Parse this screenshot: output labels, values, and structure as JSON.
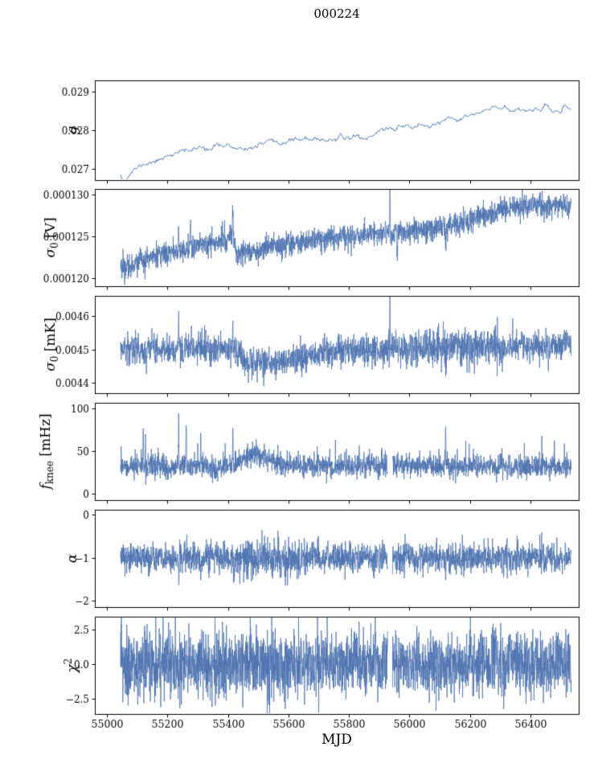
{
  "chart_data": {
    "type": "line",
    "title": "000224",
    "xlabel": "MJD",
    "line_color": "#4c72b0",
    "axis_color": "#000000",
    "xlim": [
      54960,
      56560
    ],
    "xticks": [
      55000,
      55200,
      55400,
      55600,
      55800,
      56000,
      56200,
      56400
    ],
    "xtick_labels": [
      "55000",
      "55200",
      "55400",
      "55600",
      "55800",
      "56000",
      "56200",
      "56400"
    ],
    "x_data_range": [
      55045,
      56535
    ],
    "panels": [
      {
        "id": "g",
        "ylabel": "g",
        "ylabel_runs": [
          {
            "t": "g",
            "i": 1
          }
        ],
        "ylabel_x": 95,
        "ylim": [
          0.02672,
          0.02928
        ],
        "yticks": [
          0.027,
          0.028,
          0.029
        ],
        "ytick_labels": [
          "0.027",
          "0.028",
          "0.029"
        ],
        "noise": 2.5e-05,
        "ar": 0.7,
        "lw": 1.0,
        "n_points": 550,
        "seed": 11,
        "trend": [
          [
            55045,
            0.02688
          ],
          [
            55052,
            0.02676
          ],
          [
            55060,
            0.0267
          ],
          [
            55070,
            0.02682
          ],
          [
            55085,
            0.02695
          ],
          [
            55100,
            0.02703
          ],
          [
            55120,
            0.02712
          ],
          [
            55140,
            0.02716
          ],
          [
            55170,
            0.02722
          ],
          [
            55200,
            0.02738
          ],
          [
            55230,
            0.0274
          ],
          [
            55260,
            0.02748
          ],
          [
            55290,
            0.0275
          ],
          [
            55320,
            0.02757
          ],
          [
            55345,
            0.02753
          ],
          [
            55370,
            0.0276
          ],
          [
            55400,
            0.02765
          ],
          [
            55425,
            0.02748
          ],
          [
            55440,
            0.02755
          ],
          [
            55455,
            0.02742
          ],
          [
            55470,
            0.02752
          ],
          [
            55490,
            0.02758
          ],
          [
            55515,
            0.02764
          ],
          [
            55540,
            0.02768
          ],
          [
            55565,
            0.02762
          ],
          [
            55590,
            0.02772
          ],
          [
            55620,
            0.02776
          ],
          [
            55650,
            0.02778
          ],
          [
            55680,
            0.02772
          ],
          [
            55710,
            0.02777
          ],
          [
            55740,
            0.02776
          ],
          [
            55770,
            0.02779
          ],
          [
            55800,
            0.0278
          ],
          [
            55830,
            0.02787
          ],
          [
            55855,
            0.02776
          ],
          [
            55880,
            0.0279
          ],
          [
            55905,
            0.028
          ],
          [
            55930,
            0.02806
          ],
          [
            55955,
            0.02803
          ],
          [
            55975,
            0.02812
          ],
          [
            56000,
            0.02813
          ],
          [
            56020,
            0.02807
          ],
          [
            56045,
            0.02816
          ],
          [
            56065,
            0.02805
          ],
          [
            56085,
            0.02818
          ],
          [
            56110,
            0.0282
          ],
          [
            56140,
            0.02827
          ],
          [
            56170,
            0.02829
          ],
          [
            56200,
            0.02838
          ],
          [
            56230,
            0.02843
          ],
          [
            56260,
            0.02852
          ],
          [
            56290,
            0.02857
          ],
          [
            56315,
            0.02861
          ],
          [
            56335,
            0.02849
          ],
          [
            56355,
            0.02857
          ],
          [
            56380,
            0.02853
          ],
          [
            56405,
            0.02855
          ],
          [
            56425,
            0.02851
          ],
          [
            56450,
            0.02857
          ],
          [
            56475,
            0.02847
          ],
          [
            56500,
            0.02853
          ],
          [
            56535,
            0.02852
          ]
        ],
        "spikes": [],
        "gaps": []
      },
      {
        "id": "sigma0-v",
        "ylabel": "σ0 [V]",
        "ylabel_runs": [
          {
            "t": "σ",
            "i": 1
          },
          {
            "t": "0",
            "sub": 1
          },
          {
            "t": " [V]"
          }
        ],
        "ylabel_x": 68,
        "ylim": [
          0.000119,
          0.0001307
        ],
        "yticks": [
          0.00012,
          0.000125,
          0.00013
        ],
        "ytick_labels": [
          "0.000120",
          "0.000125",
          "0.000130"
        ],
        "noise": 7e-07,
        "lw": 0.8,
        "n_points": 2200,
        "seed": 22,
        "trend": [
          [
            55045,
            0.0001212
          ],
          [
            55080,
            0.0001216
          ],
          [
            55120,
            0.0001221
          ],
          [
            55160,
            0.0001225
          ],
          [
            55200,
            0.000123
          ],
          [
            55250,
            0.0001234
          ],
          [
            55300,
            0.0001238
          ],
          [
            55350,
            0.0001242
          ],
          [
            55390,
            0.0001246
          ],
          [
            55412,
            0.000125
          ],
          [
            55420,
            0.0001252
          ],
          [
            55428,
            0.0001228
          ],
          [
            55460,
            0.0001231
          ],
          [
            55500,
            0.0001234
          ],
          [
            55550,
            0.0001238
          ],
          [
            55600,
            0.000124
          ],
          [
            55650,
            0.0001243
          ],
          [
            55700,
            0.0001246
          ],
          [
            55750,
            0.0001248
          ],
          [
            55800,
            0.000125
          ],
          [
            55850,
            0.0001252
          ],
          [
            55900,
            0.0001254
          ],
          [
            55950,
            0.0001255
          ],
          [
            56000,
            0.0001257
          ],
          [
            56050,
            0.0001258
          ],
          [
            56100,
            0.0001261
          ],
          [
            56150,
            0.0001264
          ],
          [
            56200,
            0.0001269
          ],
          [
            56240,
            0.0001274
          ],
          [
            56280,
            0.000128
          ],
          [
            56320,
            0.0001284
          ],
          [
            56360,
            0.0001287
          ],
          [
            56400,
            0.0001286
          ],
          [
            56440,
            0.0001288
          ],
          [
            56480,
            0.0001287
          ],
          [
            56535,
            0.0001288
          ]
        ],
        "spikes": [
          [
            55237,
            4e-06
          ],
          [
            55276,
            4.2e-06
          ],
          [
            55416,
            4.6e-06
          ],
          [
            55936,
            6e-06
          ],
          [
            55960,
            -3.6e-06
          ],
          [
            56120,
            -3e-06
          ]
        ],
        "gaps": []
      },
      {
        "id": "sigma0-mk",
        "ylabel": "σ0 [mK]",
        "ylabel_runs": [
          {
            "t": "σ",
            "i": 1
          },
          {
            "t": "0",
            "sub": 1
          },
          {
            "t": " [mK]"
          }
        ],
        "ylabel_x": 68,
        "ylim": [
          0.00437,
          0.00466
        ],
        "yticks": [
          0.0044,
          0.0045,
          0.0046
        ],
        "ytick_labels": [
          "0.0044",
          "0.0045",
          "0.0046"
        ],
        "noise": 2.2e-05,
        "noise_regions": [
          [
            55940,
            56300,
            1.25
          ]
        ],
        "lw": 0.8,
        "n_points": 2200,
        "seed": 33,
        "trend": [
          [
            55045,
            0.0045
          ],
          [
            55150,
            0.004502
          ],
          [
            55250,
            0.0045
          ],
          [
            55350,
            0.004503
          ],
          [
            55420,
            0.004496
          ],
          [
            55450,
            0.004472
          ],
          [
            55500,
            0.004462
          ],
          [
            55560,
            0.004458
          ],
          [
            55620,
            0.004466
          ],
          [
            55680,
            0.004484
          ],
          [
            55730,
            0.004494
          ],
          [
            55780,
            0.0045
          ],
          [
            55900,
            0.0045
          ],
          [
            56000,
            0.004504
          ],
          [
            56100,
            0.004503
          ],
          [
            56200,
            0.004508
          ],
          [
            56300,
            0.004508
          ],
          [
            56400,
            0.00451
          ],
          [
            56535,
            0.004512
          ]
        ],
        "spikes": [
          [
            55237,
            0.0001
          ],
          [
            55280,
            6e-05
          ],
          [
            55416,
            9e-05
          ],
          [
            55936,
            0.00018
          ],
          [
            55130,
            -5e-05
          ],
          [
            56120,
            -8e-05
          ],
          [
            56460,
            -7e-05
          ],
          [
            55955,
            6e-05
          ],
          [
            56260,
            7e-05
          ]
        ],
        "gaps": []
      },
      {
        "id": "fknee",
        "ylabel": "fknee [mHz]",
        "ylabel_runs": [
          {
            "t": "f",
            "i": 1
          },
          {
            "t": "knee",
            "sub": 1
          },
          {
            "t": " [mHz]"
          }
        ],
        "ylabel_x": 62,
        "ylim": [
          -8,
          107
        ],
        "yticks": [
          0,
          50,
          100
        ],
        "ytick_labels": [
          "0",
          "50",
          "100"
        ],
        "noise": 6.5,
        "tail": {
          "p": 0.03,
          "max": 26
        },
        "lw": 0.8,
        "n_points": 2400,
        "seed": 44,
        "trend": [
          [
            55045,
            31
          ],
          [
            55420,
            31
          ],
          [
            55450,
            42
          ],
          [
            55490,
            46
          ],
          [
            55530,
            41
          ],
          [
            55570,
            35
          ],
          [
            55610,
            32
          ],
          [
            56535,
            31
          ]
        ],
        "spikes": [
          [
            55120,
            52
          ],
          [
            55237,
            66
          ],
          [
            55262,
            66
          ],
          [
            55310,
            50
          ],
          [
            55416,
            56
          ],
          [
            55520,
            28
          ],
          [
            55700,
            22
          ],
          [
            55850,
            20
          ],
          [
            56000,
            18
          ],
          [
            56120,
            56
          ],
          [
            56300,
            20
          ],
          [
            56430,
            18
          ],
          [
            56480,
            16
          ]
        ],
        "gaps": [
          [
            55928,
            55944
          ]
        ]
      },
      {
        "id": "alpha",
        "ylabel": "α",
        "ylabel_runs": [
          {
            "t": "α",
            "i": 1
          }
        ],
        "ylabel_x": 95,
        "ylim": [
          -2.15,
          0.12
        ],
        "yticks": [
          -2,
          -1,
          0
        ],
        "ytick_labels": [
          "−2",
          "−1",
          "0"
        ],
        "noise": 0.17,
        "noise_regions": [
          [
            55430,
            55640,
            1.45
          ]
        ],
        "lw": 0.8,
        "n_points": 2400,
        "seed": 55,
        "trend": [
          [
            55045,
            -1
          ],
          [
            56535,
            -1
          ]
        ],
        "spikes": [
          [
            55060,
            -0.4
          ],
          [
            55140,
            -0.5
          ],
          [
            55237,
            -0.62
          ],
          [
            55310,
            -0.5
          ],
          [
            55420,
            -0.5
          ],
          [
            55640,
            -0.48
          ],
          [
            55900,
            -0.5
          ],
          [
            56120,
            -0.6
          ],
          [
            56350,
            -0.5
          ],
          [
            56480,
            -0.45
          ]
        ],
        "gaps": [
          [
            55928,
            55944
          ]
        ]
      },
      {
        "id": "chi2",
        "ylabel": "χ2",
        "ylabel_runs": [
          {
            "t": "χ",
            "i": 1
          },
          {
            "t": "2",
            "sup": 1
          }
        ],
        "ylabel_x": 95,
        "ylim": [
          -3.6,
          3.4
        ],
        "yticks": [
          -2.5,
          0,
          2.5
        ],
        "ytick_labels": [
          "−2.5",
          "0.0",
          "2.5"
        ],
        "noise": 1.15,
        "lw": 0.8,
        "n_points": 2600,
        "seed": 66,
        "trend": [
          [
            55045,
            0
          ],
          [
            56535,
            0
          ]
        ],
        "spikes": [],
        "gaps": [
          [
            55928,
            55944
          ]
        ]
      }
    ]
  }
}
